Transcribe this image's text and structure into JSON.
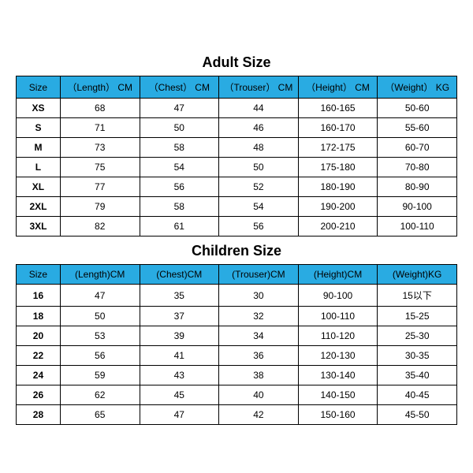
{
  "colors": {
    "header_bg": "#29abe2",
    "header_fg": "#000000",
    "border": "#000000",
    "background": "#ffffff"
  },
  "adult": {
    "title": "Adult Size",
    "columns": [
      "Size",
      "（Length）  CM",
      "（Chest）  CM",
      "（Trouser）  CM",
      "（Height）  CM",
      "（Weight）  KG"
    ],
    "col_widths_pct": [
      10,
      18,
      18,
      18,
      18,
      18
    ],
    "rows": [
      [
        "XS",
        "68",
        "47",
        "44",
        "160-165",
        "50-60"
      ],
      [
        "S",
        "71",
        "50",
        "46",
        "160-170",
        "55-60"
      ],
      [
        "M",
        "73",
        "58",
        "48",
        "172-175",
        "60-70"
      ],
      [
        "L",
        "75",
        "54",
        "50",
        "175-180",
        "70-80"
      ],
      [
        "XL",
        "77",
        "56",
        "52",
        "180-190",
        "80-90"
      ],
      [
        "2XL",
        "79",
        "58",
        "54",
        "190-200",
        "90-100"
      ],
      [
        "3XL",
        "82",
        "61",
        "56",
        "200-210",
        "100-110"
      ]
    ]
  },
  "children": {
    "title": "Children Size",
    "columns": [
      "Size",
      "(Length)CM",
      "(Chest)CM",
      "(Trouser)CM",
      "(Height)CM",
      "(Weight)KG"
    ],
    "col_widths_pct": [
      10,
      18,
      18,
      18,
      18,
      18
    ],
    "rows": [
      [
        "16",
        "47",
        "35",
        "30",
        "90-100",
        "15以下"
      ],
      [
        "18",
        "50",
        "37",
        "32",
        "100-110",
        "15-25"
      ],
      [
        "20",
        "53",
        "39",
        "34",
        "110-120",
        "25-30"
      ],
      [
        "22",
        "56",
        "41",
        "36",
        "120-130",
        "30-35"
      ],
      [
        "24",
        "59",
        "43",
        "38",
        "130-140",
        "35-40"
      ],
      [
        "26",
        "62",
        "45",
        "40",
        "140-150",
        "40-45"
      ],
      [
        "28",
        "65",
        "47",
        "42",
        "150-160",
        "45-50"
      ]
    ]
  }
}
